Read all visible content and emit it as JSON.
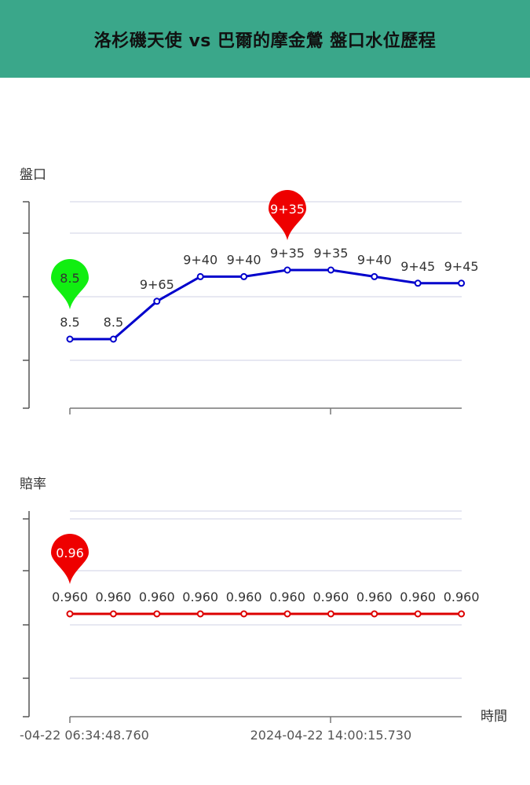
{
  "header": {
    "title": "洛杉磯天使 vs 巴爾的摩金鶯 盤口水位歷程"
  },
  "chart_data": [
    {
      "type": "line",
      "ylabel": "盤口",
      "series": [
        {
          "color": "#0000cc",
          "labels": [
            "8.5",
            "8.5",
            "9+65",
            "9+40",
            "9+40",
            "9+35",
            "9+35",
            "9+40",
            "9+45",
            "9+45"
          ],
          "values": [
            8.5,
            8.5,
            9.65,
            10.4,
            10.4,
            10.6,
            10.6,
            10.4,
            10.2,
            10.2
          ]
        }
      ],
      "markers": [
        {
          "label": "8.5",
          "point_index": 0,
          "color": "#11ee11"
        },
        {
          "label": "9+35",
          "point_index": 5,
          "color": "#ee0000"
        }
      ]
    },
    {
      "type": "line",
      "ylabel": "賠率",
      "xlabel": "時間",
      "series": [
        {
          "color": "#dd0000",
          "labels": [
            "0.960",
            "0.960",
            "0.960",
            "0.960",
            "0.960",
            "0.960",
            "0.960",
            "0.960",
            "0.960",
            "0.960"
          ],
          "values": [
            0.96,
            0.96,
            0.96,
            0.96,
            0.96,
            0.96,
            0.96,
            0.96,
            0.96,
            0.96
          ]
        }
      ],
      "markers": [
        {
          "label": "0.96",
          "point_index": 0,
          "color": "#ee0000"
        }
      ]
    }
  ],
  "x_ticks": [
    {
      "label": "-04-22 06:34:48.760",
      "point_index": 0
    },
    {
      "label": "2024-04-22 14:00:15.730",
      "point_index": 6
    }
  ]
}
